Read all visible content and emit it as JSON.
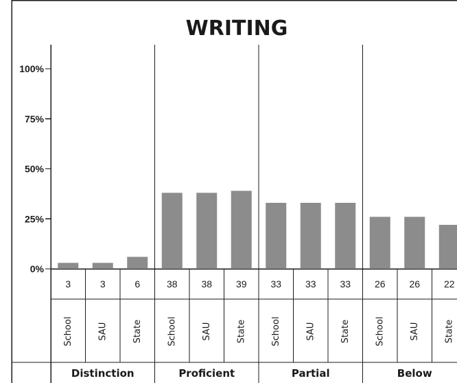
{
  "chart_data": {
    "type": "bar",
    "title": "WRITING",
    "ylim": [
      0,
      100
    ],
    "yticks": [
      0,
      25,
      50,
      75,
      100
    ],
    "ytick_labels": [
      "0%",
      "25%",
      "50%",
      "75%",
      "100%"
    ],
    "bar_color": "#8c8c8c",
    "line_color": "#1a1a1a",
    "grid": false,
    "groups": [
      {
        "label": "Distinction",
        "categories": [
          "School",
          "SAU",
          "State"
        ],
        "values": [
          3,
          3,
          6
        ]
      },
      {
        "label": "Proficient",
        "categories": [
          "School",
          "SAU",
          "State"
        ],
        "values": [
          38,
          38,
          39
        ]
      },
      {
        "label": "Partial",
        "categories": [
          "School",
          "SAU",
          "State"
        ],
        "values": [
          33,
          33,
          33
        ]
      },
      {
        "label": "Below",
        "categories": [
          "School",
          "SAU",
          "State"
        ],
        "values": [
          26,
          26,
          22
        ]
      }
    ]
  }
}
